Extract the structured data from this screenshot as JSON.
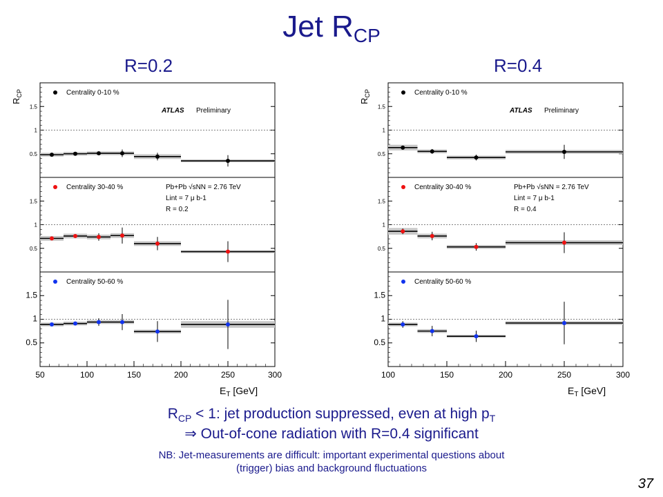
{
  "slide": {
    "title_main": "Jet R",
    "title_sub": "CP",
    "left_label": "R=0.2",
    "right_label": "R=0.4",
    "caption_line1_a": "R",
    "caption_line1_sub": "CP",
    "caption_line1_b": " < 1: jet production suppressed, even at high p",
    "caption_line1_sub2": "T",
    "caption_line2": "⇒ Out-of-cone radiation with R=0.4 significant",
    "note_line1": "NB: Jet-measurements are difficult: important experimental questions about",
    "note_line2": "(trigger) bias and background fluctuations",
    "page_number": "37"
  },
  "chart_data": [
    {
      "type": "scatter",
      "title": "R=0.2",
      "ylabel": "R_CP",
      "xlabel": "E_T [GeV]",
      "xlim": [
        50,
        300
      ],
      "xticks": [
        "50",
        "100",
        "150",
        "200",
        "250",
        "300"
      ],
      "bin_edges": [
        50,
        75,
        100,
        125,
        150,
        200,
        300
      ],
      "atlas_label": "ATLAS",
      "preliminary_label": "Preliminary",
      "info_lines": [
        "Pb+Pb √sNN = 2.76 TeV",
        "Lint = 7 μ b-1",
        "R = 0.2"
      ],
      "panels": [
        {
          "legend": "Centrality  0-10 %",
          "color": "#000000",
          "ylim": [
            0,
            2
          ],
          "yticks": [
            "0.5",
            "1",
            "1.5"
          ],
          "x": [
            62.5,
            87.5,
            112.5,
            137.5,
            175,
            250
          ],
          "y": [
            0.48,
            0.5,
            0.51,
            0.51,
            0.44,
            0.35
          ],
          "stat_err": [
            0.03,
            0.03,
            0.04,
            0.08,
            0.08,
            0.12
          ],
          "sys_err": [
            0.04,
            0.04,
            0.04,
            0.04,
            0.05,
            0.03
          ]
        },
        {
          "legend": "Centrality 30-40 %",
          "color": "#ee1111",
          "ylim": [
            0,
            2
          ],
          "yticks": [
            "0.5",
            "1",
            "1.5"
          ],
          "x": [
            62.5,
            87.5,
            112.5,
            137.5,
            175,
            250
          ],
          "y": [
            0.71,
            0.76,
            0.74,
            0.77,
            0.6,
            0.43
          ],
          "stat_err": [
            0.03,
            0.03,
            0.08,
            0.17,
            0.14,
            0.22
          ],
          "sys_err": [
            0.05,
            0.05,
            0.05,
            0.05,
            0.05,
            0.03
          ]
        },
        {
          "legend": "Centrality 50-60 %",
          "color": "#1133ee",
          "ylim": [
            0,
            2
          ],
          "yticks": [
            "0.5",
            "1",
            "1.5"
          ],
          "x": [
            62.5,
            87.5,
            112.5,
            137.5,
            175,
            250
          ],
          "y": [
            0.89,
            0.91,
            0.94,
            0.94,
            0.74,
            0.89
          ],
          "stat_err": [
            0.02,
            0.03,
            0.08,
            0.17,
            0.22,
            0.52
          ],
          "sys_err": [
            0.04,
            0.04,
            0.04,
            0.04,
            0.04,
            0.07
          ]
        }
      ]
    },
    {
      "type": "scatter",
      "title": "R=0.4",
      "ylabel": "R_CP",
      "xlabel": "E_T [GeV]",
      "xlim": [
        100,
        300
      ],
      "xticks": [
        "100",
        "150",
        "200",
        "250",
        "300"
      ],
      "bin_edges": [
        100,
        125,
        150,
        200,
        300
      ],
      "atlas_label": "ATLAS",
      "preliminary_label": "Preliminary",
      "info_lines": [
        "Pb+Pb √sNN = 2.76 TeV",
        "Lint = 7 μ b-1",
        "R = 0.4"
      ],
      "panels": [
        {
          "legend": "Centrality  0-10 %",
          "color": "#000000",
          "ylim": [
            0,
            2
          ],
          "yticks": [
            "0.5",
            "1",
            "1.5"
          ],
          "x": [
            112.5,
            137.5,
            175,
            250
          ],
          "y": [
            0.63,
            0.55,
            0.42,
            0.54
          ],
          "stat_err": [
            0.04,
            0.05,
            0.06,
            0.15
          ],
          "sys_err": [
            0.06,
            0.04,
            0.04,
            0.04
          ]
        },
        {
          "legend": "Centrality 30-40 %",
          "color": "#ee1111",
          "ylim": [
            0,
            2
          ],
          "yticks": [
            "0.5",
            "1",
            "1.5"
          ],
          "x": [
            112.5,
            137.5,
            175,
            250
          ],
          "y": [
            0.86,
            0.76,
            0.53,
            0.62
          ],
          "stat_err": [
            0.06,
            0.09,
            0.08,
            0.22
          ],
          "sys_err": [
            0.07,
            0.05,
            0.04,
            0.05
          ]
        },
        {
          "legend": "Centrality 50-60 %",
          "color": "#1133ee",
          "ylim": [
            0,
            2
          ],
          "yticks": [
            "0.5",
            "1",
            "1.5"
          ],
          "x": [
            112.5,
            137.5,
            175,
            250
          ],
          "y": [
            0.89,
            0.75,
            0.64,
            0.92
          ],
          "stat_err": [
            0.07,
            0.11,
            0.12,
            0.45
          ],
          "sys_err": [
            0.04,
            0.04,
            0.03,
            0.04
          ]
        }
      ]
    }
  ]
}
